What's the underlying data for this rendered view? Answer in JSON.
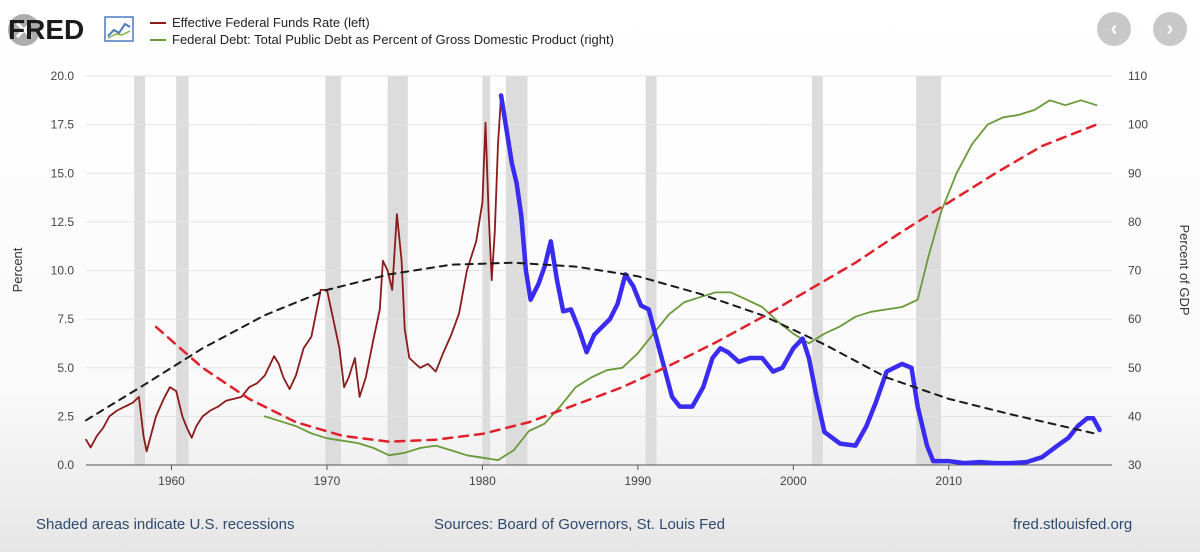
{
  "brand": "FRED",
  "nav": {
    "prev_icon": "chevron-left-icon",
    "next_icon": "chevron-right-icon",
    "prev_glyph": "‹",
    "next_glyph": "›"
  },
  "colors": {
    "fed_funds": "#8b1a1a",
    "debt": "#6a9a3a",
    "overlay_blue": "#3a2bf0",
    "trend_black": "#1a1a1a",
    "trend_red": "#e0202a",
    "recession": "#dcdcdc"
  },
  "footer": {
    "left": "Shaded areas indicate U.S. recessions",
    "middle": "Sources: Board of Governors, St. Louis Fed",
    "right": "fred.stlouisfed.org"
  },
  "chart_data": {
    "type": "line",
    "legend": [
      "Effective Federal Funds Rate (left)",
      "Federal Debt: Total Public Debt as Percent of Gross Domestic Product (right)"
    ],
    "ylabel_left": "Percent",
    "ylabel_right": "Percent of GDP",
    "xlim": [
      1954.5,
      2020.5
    ],
    "ylim_left": [
      0,
      20
    ],
    "ylim_right": [
      30,
      110
    ],
    "x_ticks": [
      "1960",
      "1970",
      "1980",
      "1990",
      "2000",
      "2010"
    ],
    "x_tick_values": [
      1960,
      1970,
      1980,
      1990,
      2000,
      2010
    ],
    "y_ticks_left": [
      "0.0",
      "2.5",
      "5.0",
      "7.5",
      "10.0",
      "12.5",
      "15.0",
      "17.5",
      "20.0"
    ],
    "y_tick_values_left": [
      0,
      2.5,
      5,
      7.5,
      10,
      12.5,
      15,
      17.5,
      20
    ],
    "y_ticks_right": [
      "30",
      "40",
      "50",
      "60",
      "70",
      "80",
      "90",
      "100",
      "110"
    ],
    "y_tick_values_right": [
      30,
      40,
      50,
      60,
      70,
      80,
      90,
      100,
      110
    ],
    "grid": true,
    "recessions": [
      [
        1957.6,
        1958.3
      ],
      [
        1960.3,
        1961.1
      ],
      [
        1969.9,
        1970.9
      ],
      [
        1973.9,
        1975.2
      ],
      [
        1980.0,
        1980.5
      ],
      [
        1981.5,
        1982.9
      ],
      [
        1990.5,
        1991.2
      ],
      [
        2001.2,
        2001.9
      ],
      [
        2007.9,
        2009.5
      ]
    ],
    "series": [
      {
        "name": "Effective Federal Funds Rate (left)",
        "axis": "left",
        "points": [
          [
            1954.5,
            1.3
          ],
          [
            1954.8,
            0.9
          ],
          [
            1955.2,
            1.5
          ],
          [
            1955.6,
            1.9
          ],
          [
            1956.0,
            2.5
          ],
          [
            1956.5,
            2.8
          ],
          [
            1957.0,
            3.0
          ],
          [
            1957.5,
            3.2
          ],
          [
            1957.9,
            3.5
          ],
          [
            1958.2,
            1.5
          ],
          [
            1958.4,
            0.7
          ],
          [
            1958.7,
            1.6
          ],
          [
            1959.0,
            2.5
          ],
          [
            1959.5,
            3.4
          ],
          [
            1959.9,
            4.0
          ],
          [
            1960.3,
            3.8
          ],
          [
            1960.7,
            2.5
          ],
          [
            1961.0,
            1.9
          ],
          [
            1961.3,
            1.4
          ],
          [
            1961.6,
            2.0
          ],
          [
            1962.0,
            2.5
          ],
          [
            1962.5,
            2.8
          ],
          [
            1963.0,
            3.0
          ],
          [
            1963.5,
            3.3
          ],
          [
            1964.0,
            3.4
          ],
          [
            1964.5,
            3.5
          ],
          [
            1965.0,
            4.0
          ],
          [
            1965.5,
            4.2
          ],
          [
            1966.0,
            4.6
          ],
          [
            1966.6,
            5.6
          ],
          [
            1966.9,
            5.2
          ],
          [
            1967.2,
            4.5
          ],
          [
            1967.6,
            3.9
          ],
          [
            1968.0,
            4.6
          ],
          [
            1968.5,
            6.0
          ],
          [
            1969.0,
            6.6
          ],
          [
            1969.6,
            9.0
          ],
          [
            1970.0,
            9.0
          ],
          [
            1970.4,
            7.5
          ],
          [
            1970.8,
            6.0
          ],
          [
            1971.1,
            4.0
          ],
          [
            1971.4,
            4.5
          ],
          [
            1971.8,
            5.5
          ],
          [
            1972.1,
            3.5
          ],
          [
            1972.5,
            4.5
          ],
          [
            1973.0,
            6.5
          ],
          [
            1973.4,
            8.0
          ],
          [
            1973.6,
            10.5
          ],
          [
            1973.9,
            10.0
          ],
          [
            1974.2,
            9.0
          ],
          [
            1974.5,
            12.9
          ],
          [
            1974.8,
            10.5
          ],
          [
            1975.0,
            7.0
          ],
          [
            1975.3,
            5.5
          ],
          [
            1975.7,
            5.2
          ],
          [
            1976.0,
            5.0
          ],
          [
            1976.5,
            5.2
          ],
          [
            1977.0,
            4.8
          ],
          [
            1977.5,
            5.8
          ],
          [
            1978.0,
            6.7
          ],
          [
            1978.5,
            7.8
          ],
          [
            1979.0,
            10.0
          ],
          [
            1979.6,
            11.5
          ],
          [
            1980.0,
            13.5
          ],
          [
            1980.2,
            17.6
          ],
          [
            1980.4,
            13.0
          ],
          [
            1980.6,
            9.5
          ],
          [
            1980.8,
            12.0
          ],
          [
            1981.0,
            16.5
          ],
          [
            1981.2,
            19.0
          ],
          [
            1981.5,
            18.0
          ]
        ]
      },
      {
        "name": "Federal Debt: Total Public Debt as Percent of Gross Domestic Product (right)",
        "axis": "right",
        "points": [
          [
            1966.0,
            40.0
          ],
          [
            1967.0,
            39.0
          ],
          [
            1968.0,
            38.0
          ],
          [
            1969.0,
            36.5
          ],
          [
            1970.0,
            35.5
          ],
          [
            1971.0,
            35.0
          ],
          [
            1972.0,
            34.5
          ],
          [
            1973.0,
            33.5
          ],
          [
            1974.0,
            32.0
          ],
          [
            1975.0,
            32.5
          ],
          [
            1976.0,
            33.5
          ],
          [
            1977.0,
            34.0
          ],
          [
            1978.0,
            33.0
          ],
          [
            1979.0,
            32.0
          ],
          [
            1980.0,
            31.5
          ],
          [
            1981.0,
            31.0
          ],
          [
            1982.0,
            33.0
          ],
          [
            1983.0,
            37.0
          ],
          [
            1984.0,
            38.5
          ],
          [
            1985.0,
            42.0
          ],
          [
            1986.0,
            46.0
          ],
          [
            1987.0,
            48.0
          ],
          [
            1988.0,
            49.5
          ],
          [
            1989.0,
            50.0
          ],
          [
            1990.0,
            53.0
          ],
          [
            1991.0,
            57.0
          ],
          [
            1992.0,
            61.0
          ],
          [
            1993.0,
            63.5
          ],
          [
            1994.0,
            64.5
          ],
          [
            1995.0,
            65.5
          ],
          [
            1996.0,
            65.5
          ],
          [
            1997.0,
            64.0
          ],
          [
            1998.0,
            62.5
          ],
          [
            1999.0,
            59.5
          ],
          [
            2000.0,
            57.0
          ],
          [
            2001.0,
            55.0
          ],
          [
            2002.0,
            57.0
          ],
          [
            2003.0,
            58.5
          ],
          [
            2004.0,
            60.5
          ],
          [
            2005.0,
            61.5
          ],
          [
            2006.0,
            62.0
          ],
          [
            2007.0,
            62.5
          ],
          [
            2008.0,
            64.0
          ],
          [
            2008.7,
            73.0
          ],
          [
            2009.5,
            82.0
          ],
          [
            2010.5,
            90.0
          ],
          [
            2011.5,
            96.0
          ],
          [
            2012.5,
            100.0
          ],
          [
            2013.5,
            101.5
          ],
          [
            2014.5,
            102.0
          ],
          [
            2015.5,
            103.0
          ],
          [
            2016.5,
            105.0
          ],
          [
            2017.5,
            104.0
          ],
          [
            2018.5,
            105.0
          ],
          [
            2019.5,
            104.0
          ]
        ]
      },
      {
        "name": "",
        "axis": "left",
        "points": [
          [
            1981.2,
            19.0
          ],
          [
            1981.5,
            17.5
          ],
          [
            1981.9,
            15.5
          ],
          [
            1982.2,
            14.5
          ],
          [
            1982.5,
            12.8
          ],
          [
            1982.8,
            10.0
          ],
          [
            1983.1,
            8.5
          ],
          [
            1983.6,
            9.3
          ],
          [
            1984.0,
            10.2
          ],
          [
            1984.4,
            11.5
          ],
          [
            1984.8,
            9.5
          ],
          [
            1985.2,
            7.9
          ],
          [
            1985.7,
            8.0
          ],
          [
            1986.2,
            7.0
          ],
          [
            1986.7,
            5.8
          ],
          [
            1987.2,
            6.7
          ],
          [
            1987.7,
            7.1
          ],
          [
            1988.2,
            7.5
          ],
          [
            1988.7,
            8.3
          ],
          [
            1989.2,
            9.8
          ],
          [
            1989.7,
            9.2
          ],
          [
            1990.2,
            8.2
          ],
          [
            1990.7,
            8.0
          ],
          [
            1991.2,
            6.5
          ],
          [
            1991.7,
            5.0
          ],
          [
            1992.2,
            3.5
          ],
          [
            1992.7,
            3.0
          ],
          [
            1993.5,
            3.0
          ],
          [
            1994.2,
            4.0
          ],
          [
            1994.8,
            5.5
          ],
          [
            1995.3,
            6.0
          ],
          [
            1995.8,
            5.8
          ],
          [
            1996.5,
            5.3
          ],
          [
            1997.2,
            5.5
          ],
          [
            1998.0,
            5.5
          ],
          [
            1998.7,
            4.8
          ],
          [
            1999.3,
            5.0
          ],
          [
            2000.0,
            6.0
          ],
          [
            2000.6,
            6.5
          ],
          [
            2001.0,
            5.5
          ],
          [
            2001.5,
            3.5
          ],
          [
            2002.0,
            1.7
          ],
          [
            2003.0,
            1.1
          ],
          [
            2004.0,
            1.0
          ],
          [
            2004.7,
            2.0
          ],
          [
            2005.3,
            3.2
          ],
          [
            2006.0,
            4.8
          ],
          [
            2007.0,
            5.2
          ],
          [
            2007.6,
            5.0
          ],
          [
            2008.0,
            3.0
          ],
          [
            2008.6,
            1.0
          ],
          [
            2009.0,
            0.2
          ],
          [
            2010.0,
            0.2
          ],
          [
            2011.0,
            0.1
          ],
          [
            2012.0,
            0.15
          ],
          [
            2013.0,
            0.1
          ],
          [
            2014.0,
            0.1
          ],
          [
            2015.0,
            0.15
          ],
          [
            2016.0,
            0.4
          ],
          [
            2017.0,
            1.0
          ],
          [
            2017.7,
            1.4
          ],
          [
            2018.3,
            2.0
          ],
          [
            2018.9,
            2.4
          ],
          [
            2019.3,
            2.4
          ],
          [
            2019.7,
            1.8
          ]
        ]
      },
      {
        "name": "",
        "axis": "left",
        "style": "dashed",
        "points": [
          [
            1954.5,
            2.3
          ],
          [
            1958.0,
            4.0
          ],
          [
            1962.0,
            6.0
          ],
          [
            1966.0,
            7.7
          ],
          [
            1970.0,
            9.0
          ],
          [
            1974.0,
            9.8
          ],
          [
            1978.0,
            10.3
          ],
          [
            1982.0,
            10.4
          ],
          [
            1986.0,
            10.2
          ],
          [
            1990.0,
            9.7
          ],
          [
            1994.0,
            8.8
          ],
          [
            1998.0,
            7.7
          ],
          [
            2002.0,
            6.2
          ],
          [
            2006.0,
            4.5
          ],
          [
            2010.0,
            3.4
          ],
          [
            2014.0,
            2.6
          ],
          [
            2019.5,
            1.6
          ]
        ]
      },
      {
        "name": "",
        "axis": "left",
        "style": "dashed",
        "points": [
          [
            1959.0,
            7.1
          ],
          [
            1962.0,
            5.0
          ],
          [
            1965.0,
            3.4
          ],
          [
            1968.0,
            2.2
          ],
          [
            1971.0,
            1.5
          ],
          [
            1974.0,
            1.2
          ],
          [
            1977.0,
            1.3
          ],
          [
            1980.0,
            1.6
          ],
          [
            1983.0,
            2.2
          ],
          [
            1986.0,
            3.1
          ],
          [
            1989.0,
            4.0
          ],
          [
            1992.0,
            5.1
          ],
          [
            1995.0,
            6.3
          ],
          [
            1998.0,
            7.6
          ],
          [
            2001.0,
            9.0
          ],
          [
            2004.0,
            10.4
          ],
          [
            2007.0,
            12.0
          ],
          [
            2010.0,
            13.5
          ],
          [
            2013.0,
            15.0
          ],
          [
            2016.0,
            16.4
          ],
          [
            2019.5,
            17.5
          ]
        ]
      }
    ]
  }
}
